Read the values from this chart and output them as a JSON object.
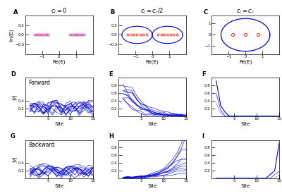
{
  "fig_width": 4.0,
  "fig_height": 2.78,
  "dpi": 100,
  "background": "#ffffff",
  "blue": "#0000dd",
  "red": "#ff2222",
  "pink": "#cc44aa",
  "n_sites": 15,
  "title_A": "$c_l=0$",
  "title_B": "$c_l=c_r/2$",
  "title_C": "$c_l=c_r$",
  "xlabel_complex": "Re(E)",
  "ylabel_complex": "Im(E)",
  "xlabel_wf": "Site",
  "ylabel_wf": "|v|"
}
